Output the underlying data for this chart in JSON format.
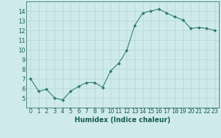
{
  "x": [
    0,
    1,
    2,
    3,
    4,
    5,
    6,
    7,
    8,
    9,
    10,
    11,
    12,
    13,
    14,
    15,
    16,
    17,
    18,
    19,
    20,
    21,
    22,
    23
  ],
  "y": [
    7.0,
    5.7,
    5.9,
    5.0,
    4.8,
    5.7,
    6.2,
    6.6,
    6.6,
    6.1,
    7.8,
    8.6,
    9.9,
    12.5,
    13.8,
    14.0,
    14.2,
    13.8,
    13.4,
    13.1,
    12.2,
    12.3,
    12.2,
    12.0
  ],
  "xlabel": "Humidex (Indice chaleur)",
  "ylim": [
    4,
    15
  ],
  "xlim": [
    -0.5,
    23.5
  ],
  "yticks": [
    5,
    6,
    7,
    8,
    9,
    10,
    11,
    12,
    13,
    14
  ],
  "xticks": [
    0,
    1,
    2,
    3,
    4,
    5,
    6,
    7,
    8,
    9,
    10,
    11,
    12,
    13,
    14,
    15,
    16,
    17,
    18,
    19,
    20,
    21,
    22,
    23
  ],
  "line_color": "#2d7a6e",
  "marker": "D",
  "marker_size": 2.0,
  "bg_color": "#ceeaea",
  "grid_color": "#b8d8d8",
  "label_color": "#1a5c50",
  "tick_label_fontsize": 6,
  "xlabel_fontsize": 7
}
